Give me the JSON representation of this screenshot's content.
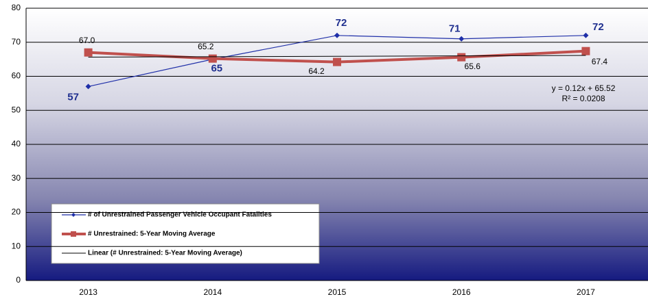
{
  "chart_data": {
    "type": "line",
    "categories": [
      "2013",
      "2014",
      "2015",
      "2016",
      "2017"
    ],
    "series": [
      {
        "name": "# of Unrestrained Passenger Vehicle Occupant Fatalities",
        "color": "#1f2fa8",
        "values": [
          57,
          65,
          72,
          71,
          72
        ]
      },
      {
        "name": "# Unrestrained: 5-Year Moving Average",
        "color": "#c0504d",
        "values": [
          67.0,
          65.2,
          64.2,
          65.6,
          67.4
        ],
        "value_labels": [
          "67.0",
          "65.2",
          "64.2",
          "65.6",
          "67.4"
        ]
      },
      {
        "name": "Linear (# Unrestrained: 5-Year Moving Average)",
        "color": "#000000",
        "values": [
          65.64,
          65.76,
          65.88,
          66.0,
          66.12
        ]
      }
    ],
    "annotations": [
      "y = 0.12x + 65.52",
      "R² = 0.0208"
    ],
    "ylim": [
      0,
      80
    ],
    "yticks": [
      0,
      10,
      20,
      30,
      40,
      50,
      60,
      70,
      80
    ],
    "grid": true
  }
}
